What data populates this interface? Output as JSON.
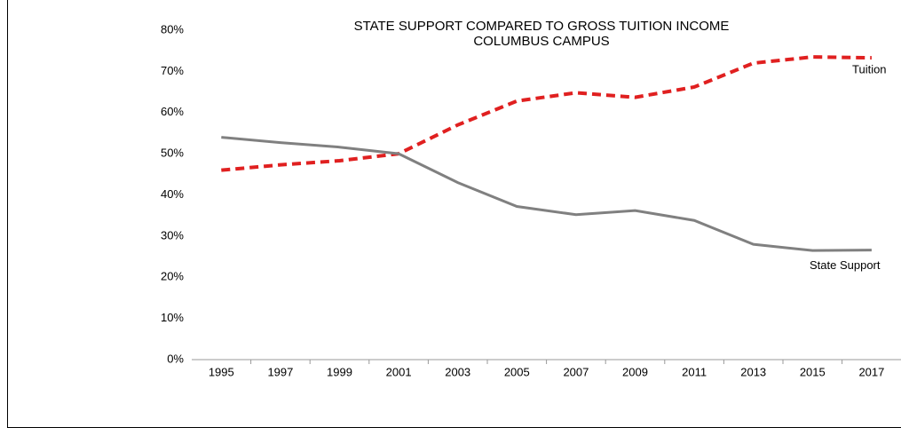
{
  "chart_data": {
    "type": "line",
    "title": [
      "STATE SUPPORT COMPARED TO GROSS TUITION INCOME",
      "COLUMBUS CAMPUS"
    ],
    "categories": [
      "1995",
      "1997",
      "1999",
      "2001",
      "2003",
      "2005",
      "2007",
      "2009",
      "2011",
      "2013",
      "2015",
      "2017"
    ],
    "series": [
      {
        "name": "Tuition",
        "color": "#e02020",
        "dashed": true,
        "values": [
          46,
          47.3,
          48.3,
          50,
          57,
          62.8,
          64.8,
          63.7,
          66.2,
          72,
          73.5,
          73.3
        ]
      },
      {
        "name": "State Support",
        "color": "#808080",
        "dashed": false,
        "values": [
          54,
          52.7,
          51.6,
          50,
          43,
          37.2,
          35.2,
          36.2,
          33.8,
          28,
          26.5,
          26.6
        ]
      }
    ],
    "ylim": [
      0,
      80
    ],
    "yticks": [
      {
        "value": 0,
        "label": "0%"
      },
      {
        "value": 10,
        "label": "10%"
      },
      {
        "value": 20,
        "label": "20%"
      },
      {
        "value": 30,
        "label": "30%"
      },
      {
        "value": 40,
        "label": "40%"
      },
      {
        "value": 50,
        "label": "50%"
      },
      {
        "value": 60,
        "label": "60%"
      },
      {
        "value": 70,
        "label": "70%"
      },
      {
        "value": 80,
        "label": "80%"
      }
    ],
    "grid": false
  }
}
